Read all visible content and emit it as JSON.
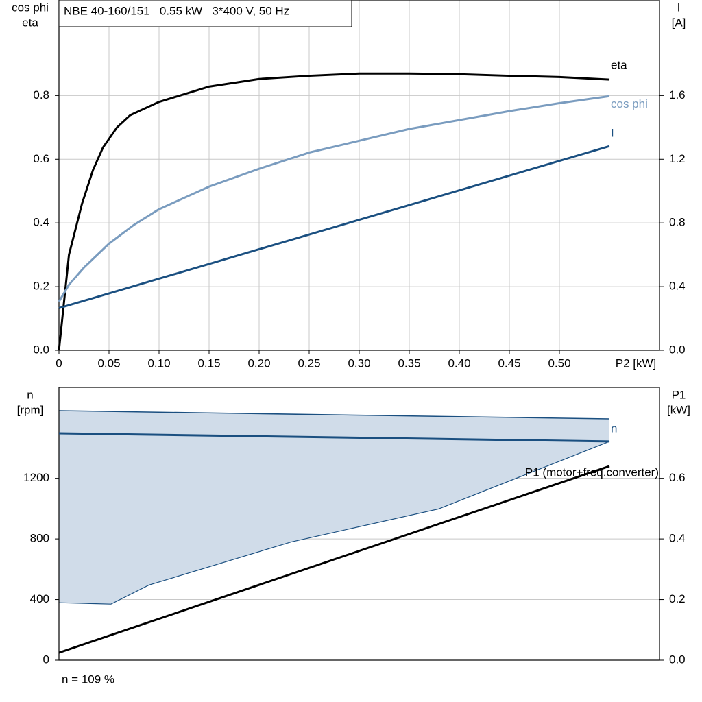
{
  "chart_data": [
    {
      "type": "line",
      "title": "NBE 40-160/151   0.55 kW   3*400 V, 50 Hz",
      "ylabel": [
        "cos phi",
        "eta"
      ],
      "y2label": [
        "I",
        "[A]"
      ],
      "xlabel": "P2 [kW]",
      "xlim": [
        0,
        0.6
      ],
      "xticks": [
        0,
        0.05,
        {
          "value": 0.1,
          "label": "0.10"
        },
        0.15,
        {
          "value": 0.2,
          "label": "0.20"
        },
        0.25,
        {
          "value": 0.3,
          "label": "0.30"
        },
        0.35,
        {
          "value": 0.4,
          "label": "0.40"
        },
        0.45,
        {
          "value": 0.5,
          "label": "0.50"
        }
      ],
      "ylim": [
        0,
        1.1
      ],
      "yticks": [
        {
          "value": 0,
          "label": "0.0"
        },
        0.2,
        0.4,
        0.6,
        0.8
      ],
      "y2lim": [
        0,
        2.2
      ],
      "y2ticks": [
        {
          "value": 0,
          "label": "0.0"
        },
        0.4,
        0.8,
        1.2,
        1.6
      ],
      "grid": true,
      "series": [
        {
          "name": "eta",
          "color": "#000000",
          "x": [
            0,
            0.01,
            0.023,
            0.034,
            0.044,
            0.058,
            0.071,
            0.1,
            0.15,
            0.2,
            0.25,
            0.3,
            0.35,
            0.4,
            0.45,
            0.5,
            0.55
          ],
          "values": [
            0,
            0.3,
            0.46,
            0.566,
            0.637,
            0.7,
            0.738,
            0.78,
            0.828,
            0.852,
            0.862,
            0.869,
            0.869,
            0.867,
            0.862,
            0.858,
            0.85
          ]
        },
        {
          "name": "cos phi",
          "color": "#7a9cbf",
          "x": [
            0,
            0.01,
            0.025,
            0.05,
            0.075,
            0.1,
            0.15,
            0.2,
            0.25,
            0.3,
            0.35,
            0.4,
            0.45,
            0.5,
            0.55
          ],
          "values": [
            0.153,
            0.206,
            0.26,
            0.335,
            0.394,
            0.443,
            0.514,
            0.57,
            0.621,
            0.658,
            0.695,
            0.723,
            0.751,
            0.776,
            0.798
          ]
        },
        {
          "name": "I",
          "color": "#1a4f80",
          "axis": "y2",
          "x": [
            0,
            0.55
          ],
          "values": [
            0.265,
            1.282
          ]
        }
      ]
    },
    {
      "type": "line",
      "ylabel": [
        "n",
        "[rpm]"
      ],
      "y2label": [
        "P1",
        "[kW]"
      ],
      "note": "n = 109 %",
      "xlim": [
        0,
        0.6
      ],
      "ylim": [
        0,
        1800
      ],
      "yticks": [
        0,
        400,
        800,
        1200
      ],
      "y2lim": [
        0,
        0.9
      ],
      "y2ticks": [
        {
          "value": 0,
          "label": "0.0"
        },
        0.2,
        0.4,
        0.6
      ],
      "grid": true,
      "band": {
        "color": "#d0dce9",
        "x_upper": [
          0,
          0.55
        ],
        "upper": [
          1646,
          1592
        ],
        "x_lower": [
          0,
          0.052,
          0.09,
          0.232,
          0.379,
          0.55
        ],
        "lower": [
          379,
          370,
          496,
          780,
          997,
          1443
        ]
      },
      "series": [
        {
          "name": "n",
          "color": "#1a4f80",
          "x": [
            0,
            0.55
          ],
          "values": [
            1497,
            1443
          ]
        },
        {
          "name": "P1 (motor+freq.converter)",
          "color": "#000000",
          "axis": "y2",
          "x": [
            0,
            0.55
          ],
          "values": [
            0.0248,
            0.64
          ]
        }
      ]
    }
  ]
}
